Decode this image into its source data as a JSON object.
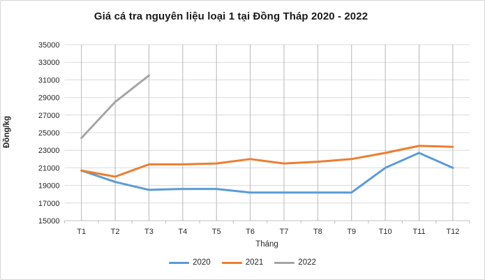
{
  "chart_data": {
    "type": "line",
    "title": "Giá cá tra nguyên liệu loại 1 tại Đồng Tháp 2020 - 2022",
    "xlabel": "Tháng",
    "ylabel": "Đồng/kg",
    "categories": [
      "T1",
      "T2",
      "T3",
      "T4",
      "T5",
      "T6",
      "T7",
      "T8",
      "T9",
      "T10",
      "T11",
      "T12"
    ],
    "ylim": [
      15000,
      35000
    ],
    "y_tick_step": 2000,
    "y_ticks": [
      15000,
      17000,
      19000,
      21000,
      23000,
      25000,
      27000,
      29000,
      31000,
      33000,
      35000
    ],
    "grid": true,
    "legend_position": "bottom",
    "series": [
      {
        "name": "2020",
        "color": "#5B9BD5",
        "values": [
          20700,
          19400,
          18500,
          18600,
          18600,
          18200,
          18200,
          18200,
          18200,
          21000,
          22700,
          21000
        ]
      },
      {
        "name": "2021",
        "color": "#ED7D31",
        "values": [
          20700,
          20000,
          21400,
          21400,
          21500,
          22000,
          21500,
          21700,
          22000,
          22700,
          23500,
          23400
        ]
      },
      {
        "name": "2022",
        "color": "#A5A5A5",
        "values": [
          24400,
          28500,
          31500,
          null,
          null,
          null,
          null,
          null,
          null,
          null,
          null,
          null
        ]
      }
    ]
  },
  "colors": {
    "background": "#FFFFFF",
    "gridline_horizontal": "#D9D9D9",
    "gridline_vertical": "#B7B7B7",
    "axis_line": "#BFBFBF",
    "tick_text": "#262626",
    "title_text": "#1A1A1A"
  }
}
